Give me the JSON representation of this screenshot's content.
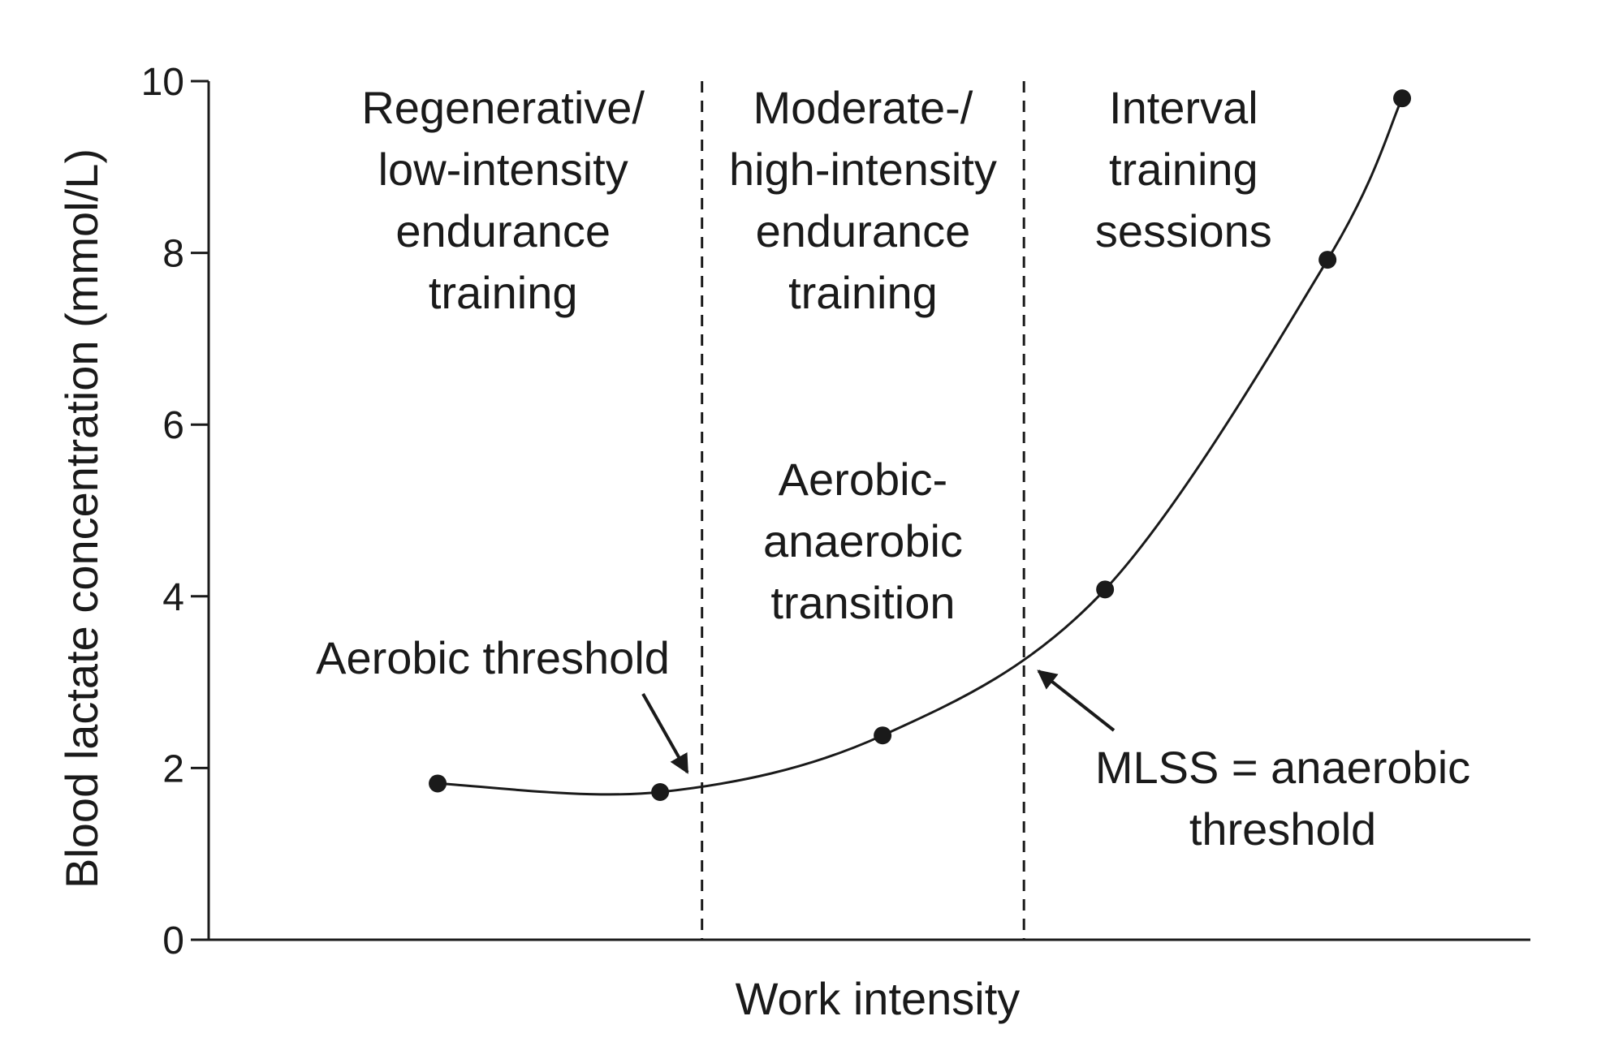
{
  "chart_data": {
    "type": "line",
    "xlabel": "Work intensity",
    "ylabel": "Blood lactate concentration (mmol/L)",
    "ylim": [
      0,
      10
    ],
    "yticks": [
      0,
      2,
      4,
      6,
      8,
      10
    ],
    "xlim": [
      0,
      10.1
    ],
    "x_ticks_shown": false,
    "grid": false,
    "series": [
      {
        "points": [
          {
            "x": 1.75,
            "y": 1.82
          },
          {
            "x": 3.45,
            "y": 1.72
          },
          {
            "x": 5.15,
            "y": 2.38
          },
          {
            "x": 6.85,
            "y": 4.08
          },
          {
            "x": 8.55,
            "y": 7.92
          },
          {
            "x": 9.12,
            "y": 9.8
          }
        ]
      }
    ],
    "dividers_x": [
      3.77,
      6.23
    ],
    "zones": [
      {
        "x_center": 2.25,
        "lines": [
          "Regenerative/",
          "low-intensity",
          "endurance",
          "training"
        ]
      },
      {
        "x_center": 5.0,
        "lines": [
          "Moderate-/",
          "high-intensity",
          "endurance",
          "training"
        ]
      },
      {
        "x_center": 7.45,
        "lines": [
          "Interval",
          "training",
          "sessions"
        ]
      }
    ],
    "middle_label": {
      "x_center": 5.0,
      "lines": [
        "Aerobic-",
        "anaerobic",
        "transition"
      ]
    },
    "annotations": [
      {
        "name": "aerobic-threshold",
        "lines": [
          "Aerobic threshold"
        ],
        "target_x": 3.77,
        "target_y": 1.78
      },
      {
        "name": "mlss",
        "lines": [
          "MLSS = anaerobic",
          "threshold"
        ],
        "target_x": 6.23,
        "target_y": 3.3
      }
    ],
    "colors": {
      "line": "#1a1a1a",
      "text": "#1a1a1a",
      "background": "#ffffff"
    }
  }
}
